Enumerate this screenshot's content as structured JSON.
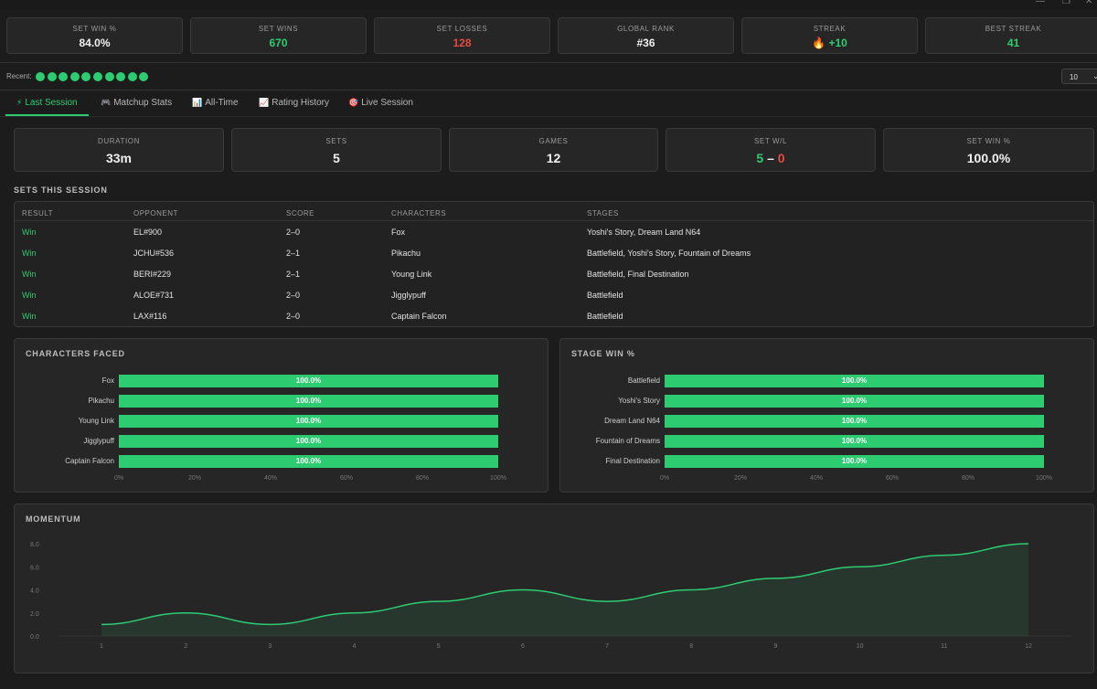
{
  "window": {
    "min_glyph": "—",
    "max_glyph": "❐",
    "close_glyph": "✕"
  },
  "stats": [
    {
      "label": "SET WIN %",
      "value": "84.0%",
      "tone": "neutral"
    },
    {
      "label": "SET WINS",
      "value": "670",
      "tone": "green"
    },
    {
      "label": "SET LOSSES",
      "value": "128",
      "tone": "red"
    },
    {
      "label": "GLOBAL RANK",
      "value": "#36",
      "tone": "neutral"
    },
    {
      "label": "STREAK",
      "value": "🔥 +10",
      "tone": "green"
    },
    {
      "label": "BEST STREAK",
      "value": "41",
      "tone": "green"
    }
  ],
  "recent": {
    "label": "Recent:",
    "results": [
      "W",
      "W",
      "W",
      "W",
      "W",
      "W",
      "W",
      "W",
      "W",
      "W"
    ],
    "count_value": "10",
    "count_chevron": "⌄"
  },
  "tabs": [
    {
      "icon": "⚡",
      "icon_name": "lightning-icon",
      "label": "Last Session",
      "active": true
    },
    {
      "icon": "🎮",
      "icon_name": "gamepad-icon",
      "label": "Matchup Stats",
      "active": false
    },
    {
      "icon": "📊",
      "icon_name": "bar-chart-icon",
      "label": "All-Time",
      "active": false
    },
    {
      "icon": "📈",
      "icon_name": "line-chart-icon",
      "label": "Rating History",
      "active": false
    },
    {
      "icon": "🎯",
      "icon_name": "target-icon",
      "label": "Live Session",
      "active": false
    }
  ],
  "session": {
    "duration": {
      "label": "DURATION",
      "value": "33m"
    },
    "sets": {
      "label": "SETS",
      "value": "5"
    },
    "games": {
      "label": "GAMES",
      "value": "12"
    },
    "set_wl": {
      "label": "SET W/L",
      "wins": "5",
      "sep": " – ",
      "losses": "0"
    },
    "set_win_pct": {
      "label": "SET WIN %",
      "value": "100.0%"
    }
  },
  "sets_section_title": "SETS THIS SESSION",
  "sets_table": {
    "columns": [
      "RESULT",
      "OPPONENT",
      "SCORE",
      "CHARACTERS",
      "STAGES"
    ],
    "rows": [
      [
        "Win",
        "EL#900",
        "2–0",
        "Fox",
        "Yoshi's Story, Dream Land N64"
      ],
      [
        "Win",
        "JCHU#536",
        "2–1",
        "Pikachu",
        "Battlefield, Yoshi's Story, Fountain of Dreams"
      ],
      [
        "Win",
        "BERI#229",
        "2–1",
        "Young Link",
        "Battlefield, Final Destination"
      ],
      [
        "Win",
        "ALOE#731",
        "2–0",
        "Jigglypuff",
        "Battlefield"
      ],
      [
        "Win",
        "LAX#116",
        "2–0",
        "Captain Falcon",
        "Battlefield"
      ]
    ]
  },
  "characters_faced": {
    "title": "CHARACTERS FACED",
    "items": [
      {
        "label": "Fox",
        "pct": 100.0,
        "text": "100.0%"
      },
      {
        "label": "Pikachu",
        "pct": 100.0,
        "text": "100.0%"
      },
      {
        "label": "Young Link",
        "pct": 100.0,
        "text": "100.0%"
      },
      {
        "label": "Jigglypuff",
        "pct": 100.0,
        "text": "100.0%"
      },
      {
        "label": "Captain Falcon",
        "pct": 100.0,
        "text": "100.0%"
      }
    ],
    "axis_ticks": [
      "0%",
      "20%",
      "40%",
      "60%",
      "80%",
      "100%"
    ]
  },
  "stage_win": {
    "title": "STAGE WIN %",
    "items": [
      {
        "label": "Battlefield",
        "pct": 100.0,
        "text": "100.0%"
      },
      {
        "label": "Yoshi's Story",
        "pct": 100.0,
        "text": "100.0%"
      },
      {
        "label": "Dream Land N64",
        "pct": 100.0,
        "text": "100.0%"
      },
      {
        "label": "Fountain of Dreams",
        "pct": 100.0,
        "text": "100.0%"
      },
      {
        "label": "Final Destination",
        "pct": 100.0,
        "text": "100.0%"
      }
    ],
    "axis_ticks": [
      "0%",
      "20%",
      "40%",
      "60%",
      "80%",
      "100%"
    ]
  },
  "momentum": {
    "title": "MOMENTUM",
    "line_color": "#2ecc71",
    "y_ticks": [
      "0.0",
      "2.0",
      "4.0",
      "6.0",
      "8.0"
    ]
  },
  "chart_data": {
    "type": "area",
    "title": "MOMENTUM",
    "x": [
      1,
      2,
      3,
      4,
      5,
      6,
      7,
      8,
      9,
      10,
      11,
      12
    ],
    "series": [
      {
        "values": [
          1,
          2,
          1,
          2,
          3,
          4,
          3,
          4,
          5,
          6,
          7,
          8
        ]
      }
    ],
    "ylim": [
      0,
      8
    ],
    "grid": false
  }
}
